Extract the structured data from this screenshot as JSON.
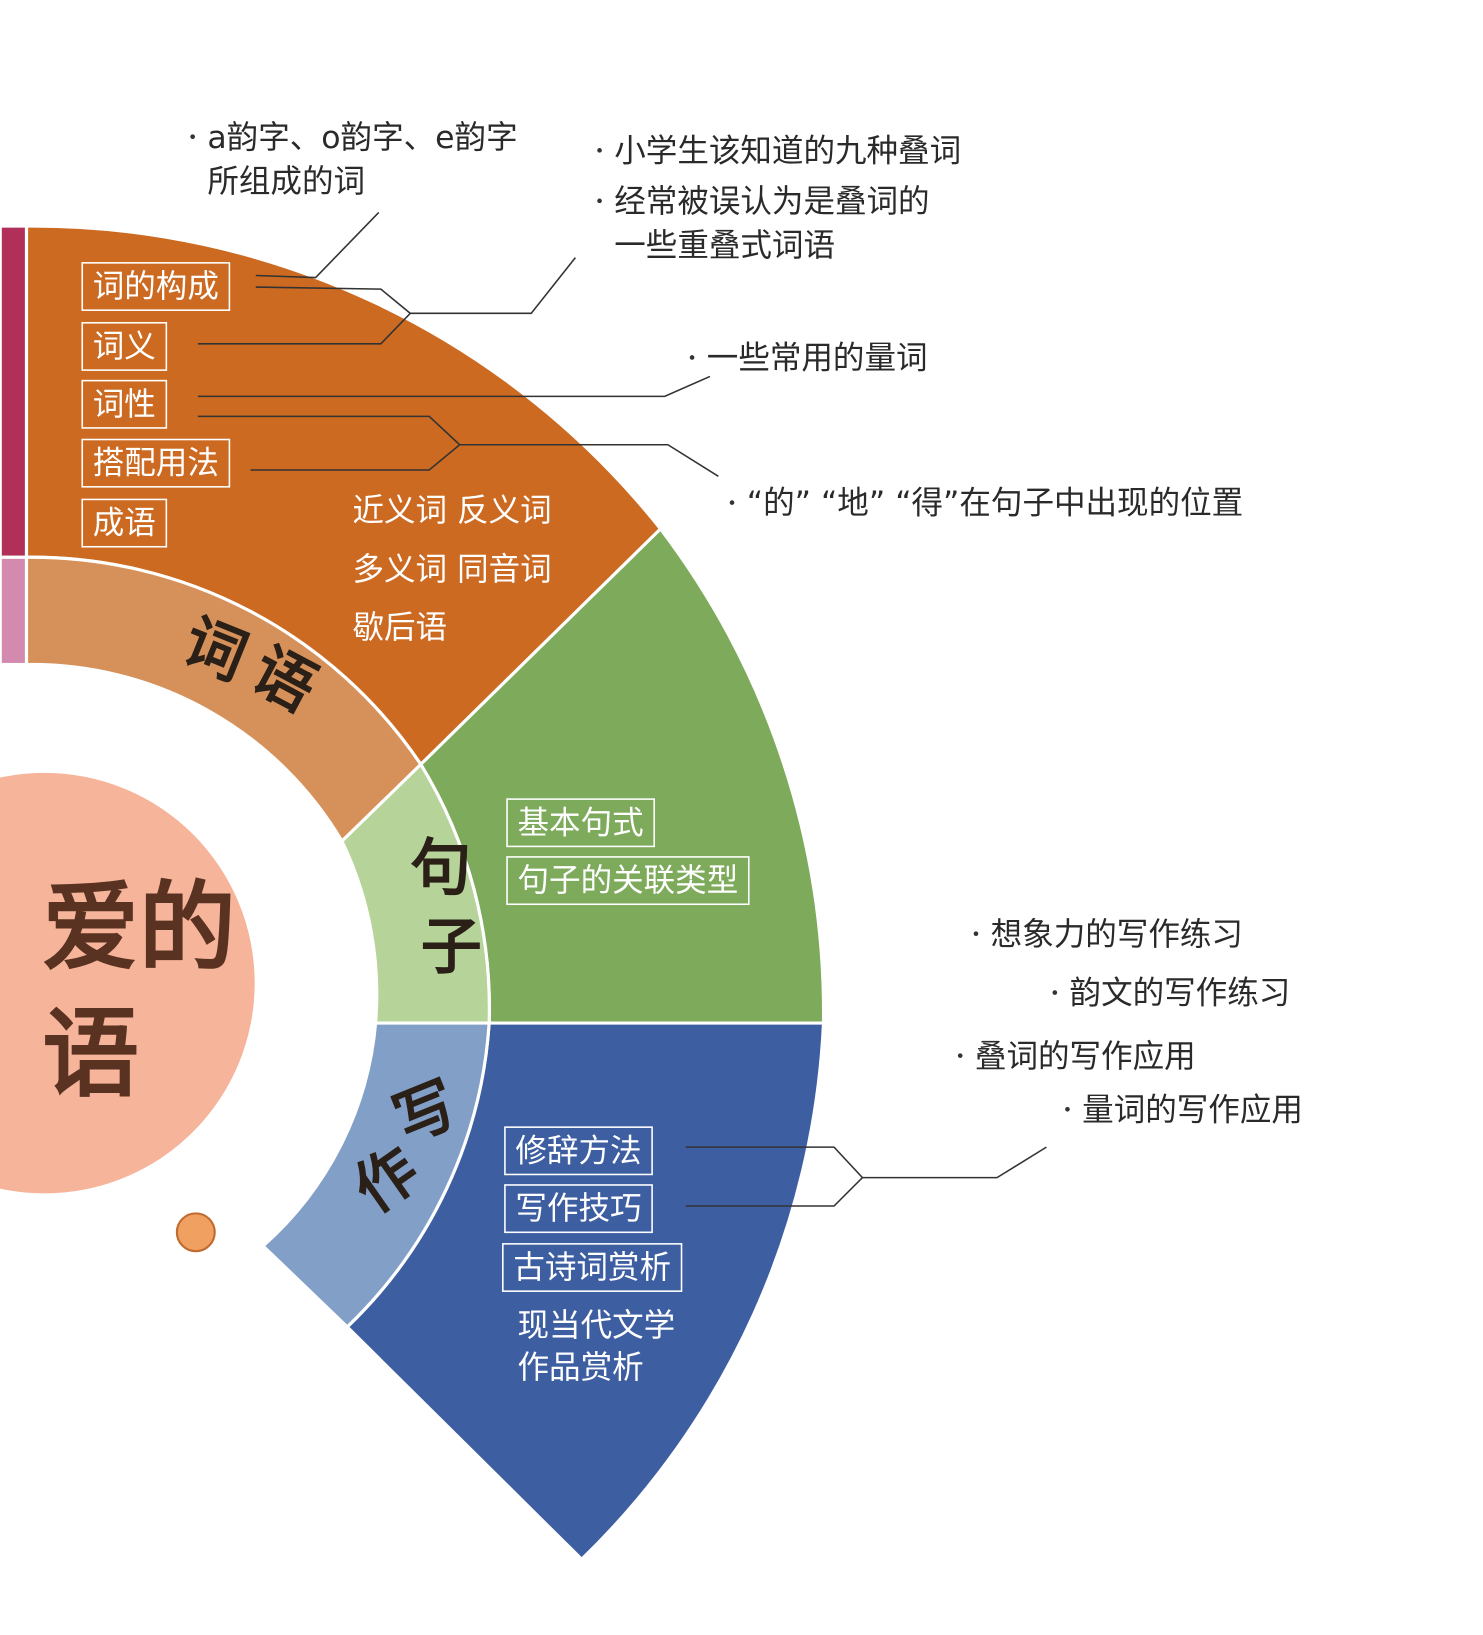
{
  "center": {
    "lines": [
      "爱的",
      "语"
    ]
  },
  "sections": [
    {
      "label": "词语",
      "boxes": [
        "词的构成",
        "词义",
        "词性",
        "搭配用法",
        "成语"
      ],
      "items": [
        "近义词  反义词",
        "多义词  同音词",
        "歇后语"
      ],
      "notes": [
        {
          "lines": [
            "a韵字、o韵字、e韵字",
            "所组成的词"
          ]
        },
        {
          "lines": [
            "小学生该知道的九种叠词"
          ]
        },
        {
          "lines": [
            "经常被误认为是叠词的",
            "一些重叠式词语"
          ]
        },
        {
          "lines": [
            "一些常用的量词"
          ]
        },
        {
          "lines": [
            "“的” “地” “得”在句子中出现的位置"
          ]
        }
      ]
    },
    {
      "label": "句子",
      "boxes": [
        "基本句式",
        "句子的关联类型"
      ],
      "items": [],
      "notes": []
    },
    {
      "label": "写作",
      "boxes": [
        "修辞方法",
        "写作技巧",
        "古诗词赏析"
      ],
      "items": [
        "现当代文学",
        "作品赏析"
      ],
      "notes": [
        {
          "lines": [
            "想象力的写作练习"
          ]
        },
        {
          "lines": [
            "韵文的写作练习"
          ]
        },
        {
          "lines": [
            "叠词的写作应用"
          ]
        },
        {
          "lines": [
            "量词的写作应用"
          ]
        }
      ]
    }
  ]
}
